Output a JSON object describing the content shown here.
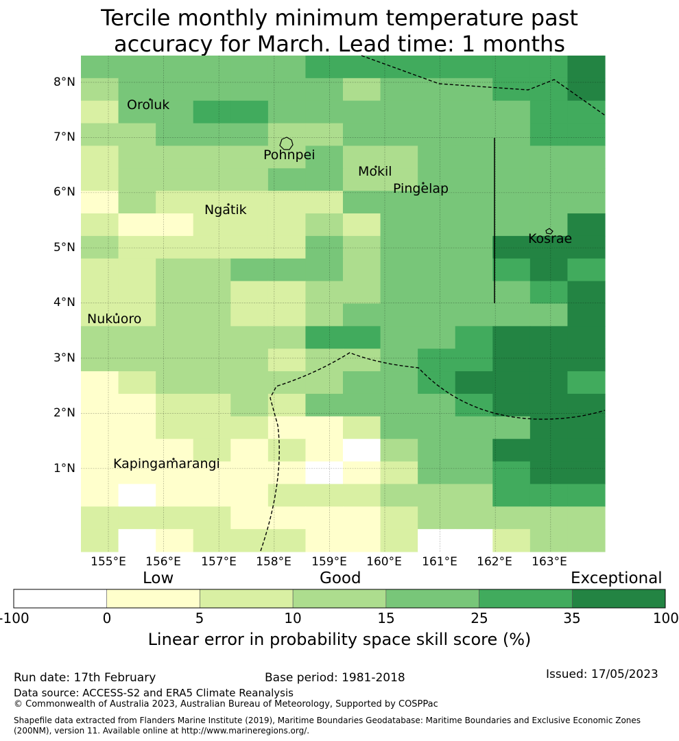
{
  "title_line1": "Tercile monthly minimum temperature past",
  "title_line2": "accuracy for March. Lead time: 1 months",
  "map": {
    "lat_labels": [
      "8°N",
      "7°N",
      "6°N",
      "5°N",
      "4°N",
      "3°N",
      "2°N",
      "1°N"
    ],
    "lon_labels": [
      "155°E",
      "156°E",
      "157°E",
      "158°E",
      "159°E",
      "160°E",
      "161°E",
      "162°E",
      "163°E"
    ],
    "places": {
      "oroluk": "Oroluk",
      "pohnpei": "Pohnpei",
      "mokil": "Mokil",
      "pingelap": "Pingelap",
      "ngatik": "Ngatik",
      "kosrae": "Kosrae",
      "nukuoro": "Nukuoro",
      "kapingamarangi": "Kapingamarangi"
    },
    "skill_class_grid": [
      "44444455555556",
      "34444443444556",
      "24455444444455",
      "33444334444455",
      "23333343344444",
      "23333443344444",
      "13222224444444",
      "21122232444446",
      "32222243444666",
      "22334443444565",
      "22332233444456",
      "22332234444446",
      "33333355445666",
      "33333233455666",
      "12333334456665",
      "11223244445666",
      "11222112444466",
      "11121210344666",
      "11111101244566",
      "10111222333555",
      "22221111233333",
      "20122211200233"
    ]
  },
  "colorbar": {
    "categories": {
      "low": "Low",
      "good": "Good",
      "exceptional": "Exceptional"
    },
    "ticks": [
      "-100",
      "0",
      "5",
      "10",
      "15",
      "25",
      "35",
      "100"
    ],
    "colors": [
      "#ffffff",
      "#ffffcc",
      "#d9f0a3",
      "#addd8e",
      "#78c679",
      "#41ab5d",
      "#238443"
    ],
    "title": "Linear error in probability space skill score (%)"
  },
  "footer": {
    "run_date": "Run date: 17th February",
    "base_period": "Base period: 1981-2018",
    "issued": "Issued: 17/05/2023",
    "data_source": "Data source: ACCESS-S2 and ERA5 Climate Reanalysis",
    "copyright": "© Commonwealth of Australia 2023, Australian Bureau of Meteorology, Supported by COSPPac",
    "shapefile_line1": "Shapefile data extracted from Flanders Marine Institute (2019), Maritime Boundaries Geodatabase: Maritime Boundaries and Exclusive Economic Zones",
    "shapefile_line2": "(200NM), version 11. Available online at http://www.marineregions.org/."
  }
}
